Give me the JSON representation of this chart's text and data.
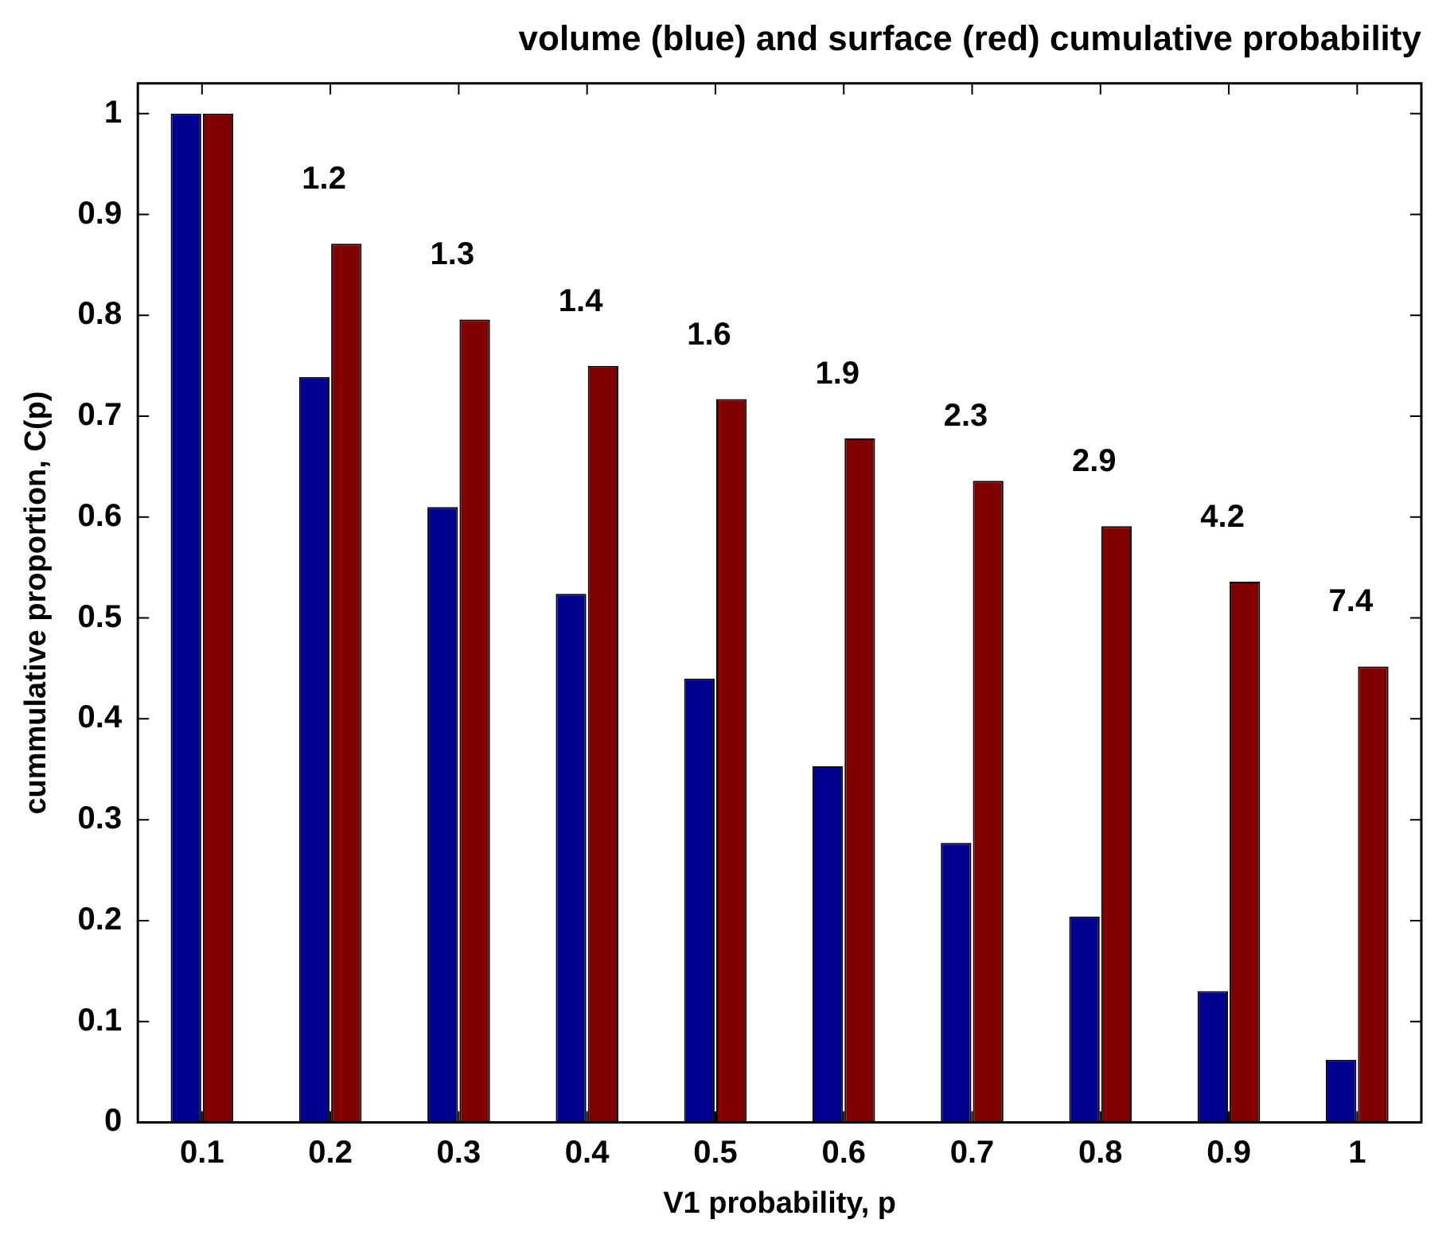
{
  "chart_data": {
    "type": "bar",
    "title": "volume (blue) and surface (red) cumulative probability",
    "xlabel": "V1 probability, p",
    "ylabel": "cummulative proportion, C(p)",
    "categories": [
      "0.1",
      "0.2",
      "0.3",
      "0.4",
      "0.5",
      "0.6",
      "0.7",
      "0.8",
      "0.9",
      "1"
    ],
    "series": [
      {
        "color": "#000090",
        "values": [
          1.0,
          0.739,
          0.61,
          0.524,
          0.44,
          0.353,
          0.277,
          0.204,
          0.13,
          0.062
        ]
      },
      {
        "color": "#800000",
        "values": [
          1.0,
          0.871,
          0.796,
          0.75,
          0.717,
          0.678,
          0.636,
          0.591,
          0.536,
          0.452
        ]
      }
    ],
    "annotations": [
      "1.2",
      "1.3",
      "1.4",
      "1.6",
      "1.9",
      "2.3",
      "2.9",
      "4.2",
      "7.4"
    ],
    "ylim": [
      0,
      1.03
    ],
    "yticks": [
      0,
      0.1,
      0.2,
      0.3,
      0.4,
      0.5,
      0.6,
      0.7,
      0.8,
      0.9,
      1
    ],
    "grid": false,
    "legend": false
  }
}
